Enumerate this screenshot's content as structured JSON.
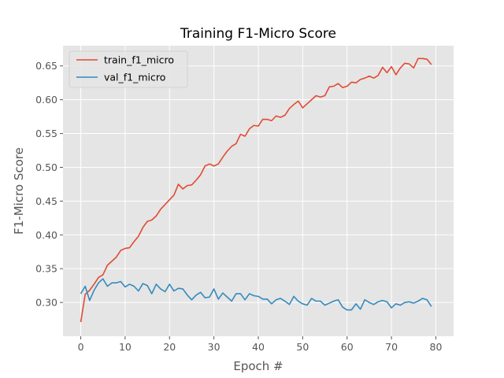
{
  "chart_data": {
    "type": "line",
    "title": "Training F1-Micro Score",
    "xlabel": "Epoch #",
    "ylabel": "F1-Micro Score",
    "xlim": [
      -4,
      84
    ],
    "ylim": [
      0.25,
      0.68
    ],
    "xticks": [
      0,
      10,
      20,
      30,
      40,
      50,
      60,
      70,
      80
    ],
    "yticks": [
      0.3,
      0.35,
      0.4,
      0.45,
      0.5,
      0.55,
      0.6,
      0.65
    ],
    "ytick_labels": [
      "0.30",
      "0.35",
      "0.40",
      "0.45",
      "0.50",
      "0.55",
      "0.60",
      "0.65"
    ],
    "grid": true,
    "legend_position": "upper-left",
    "x": [
      0,
      1,
      2,
      3,
      4,
      5,
      6,
      7,
      8,
      9,
      10,
      11,
      12,
      13,
      14,
      15,
      16,
      17,
      18,
      19,
      20,
      21,
      22,
      23,
      24,
      25,
      26,
      27,
      28,
      29,
      30,
      31,
      32,
      33,
      34,
      35,
      36,
      37,
      38,
      39,
      40,
      41,
      42,
      43,
      44,
      45,
      46,
      47,
      48,
      49,
      50,
      51,
      52,
      53,
      54,
      55,
      56,
      57,
      58,
      59,
      60,
      61,
      62,
      63,
      64,
      65,
      66,
      67,
      68,
      69,
      70,
      71,
      72,
      73,
      74,
      75,
      76,
      77,
      78,
      79
    ],
    "series": [
      {
        "name": "train_f1_micro",
        "color": "#E24A33",
        "values": [
          0.271,
          0.312,
          0.318,
          0.327,
          0.337,
          0.341,
          0.355,
          0.361,
          0.367,
          0.377,
          0.38,
          0.381,
          0.39,
          0.398,
          0.411,
          0.42,
          0.422,
          0.428,
          0.438,
          0.445,
          0.452,
          0.459,
          0.475,
          0.468,
          0.473,
          0.474,
          0.481,
          0.489,
          0.502,
          0.505,
          0.502,
          0.505,
          0.515,
          0.524,
          0.531,
          0.535,
          0.549,
          0.546,
          0.557,
          0.562,
          0.561,
          0.571,
          0.571,
          0.569,
          0.576,
          0.574,
          0.577,
          0.587,
          0.593,
          0.598,
          0.588,
          0.594,
          0.6,
          0.606,
          0.604,
          0.606,
          0.619,
          0.62,
          0.624,
          0.618,
          0.62,
          0.626,
          0.625,
          0.63,
          0.632,
          0.635,
          0.632,
          0.636,
          0.648,
          0.64,
          0.649,
          0.637,
          0.647,
          0.654,
          0.653,
          0.647,
          0.661,
          0.661,
          0.66,
          0.652
        ]
      },
      {
        "name": "val_f1_micro",
        "color": "#348ABD",
        "values": [
          0.313,
          0.324,
          0.303,
          0.318,
          0.329,
          0.335,
          0.324,
          0.329,
          0.329,
          0.331,
          0.323,
          0.327,
          0.324,
          0.317,
          0.328,
          0.325,
          0.313,
          0.327,
          0.32,
          0.316,
          0.327,
          0.317,
          0.321,
          0.32,
          0.311,
          0.304,
          0.311,
          0.315,
          0.307,
          0.308,
          0.32,
          0.305,
          0.314,
          0.308,
          0.302,
          0.313,
          0.313,
          0.304,
          0.313,
          0.31,
          0.309,
          0.305,
          0.305,
          0.298,
          0.304,
          0.306,
          0.302,
          0.297,
          0.309,
          0.302,
          0.298,
          0.296,
          0.306,
          0.302,
          0.302,
          0.296,
          0.299,
          0.302,
          0.304,
          0.293,
          0.289,
          0.289,
          0.298,
          0.29,
          0.304,
          0.3,
          0.297,
          0.301,
          0.303,
          0.301,
          0.292,
          0.298,
          0.296,
          0.3,
          0.301,
          0.299,
          0.302,
          0.306,
          0.304,
          0.294
        ]
      }
    ]
  }
}
